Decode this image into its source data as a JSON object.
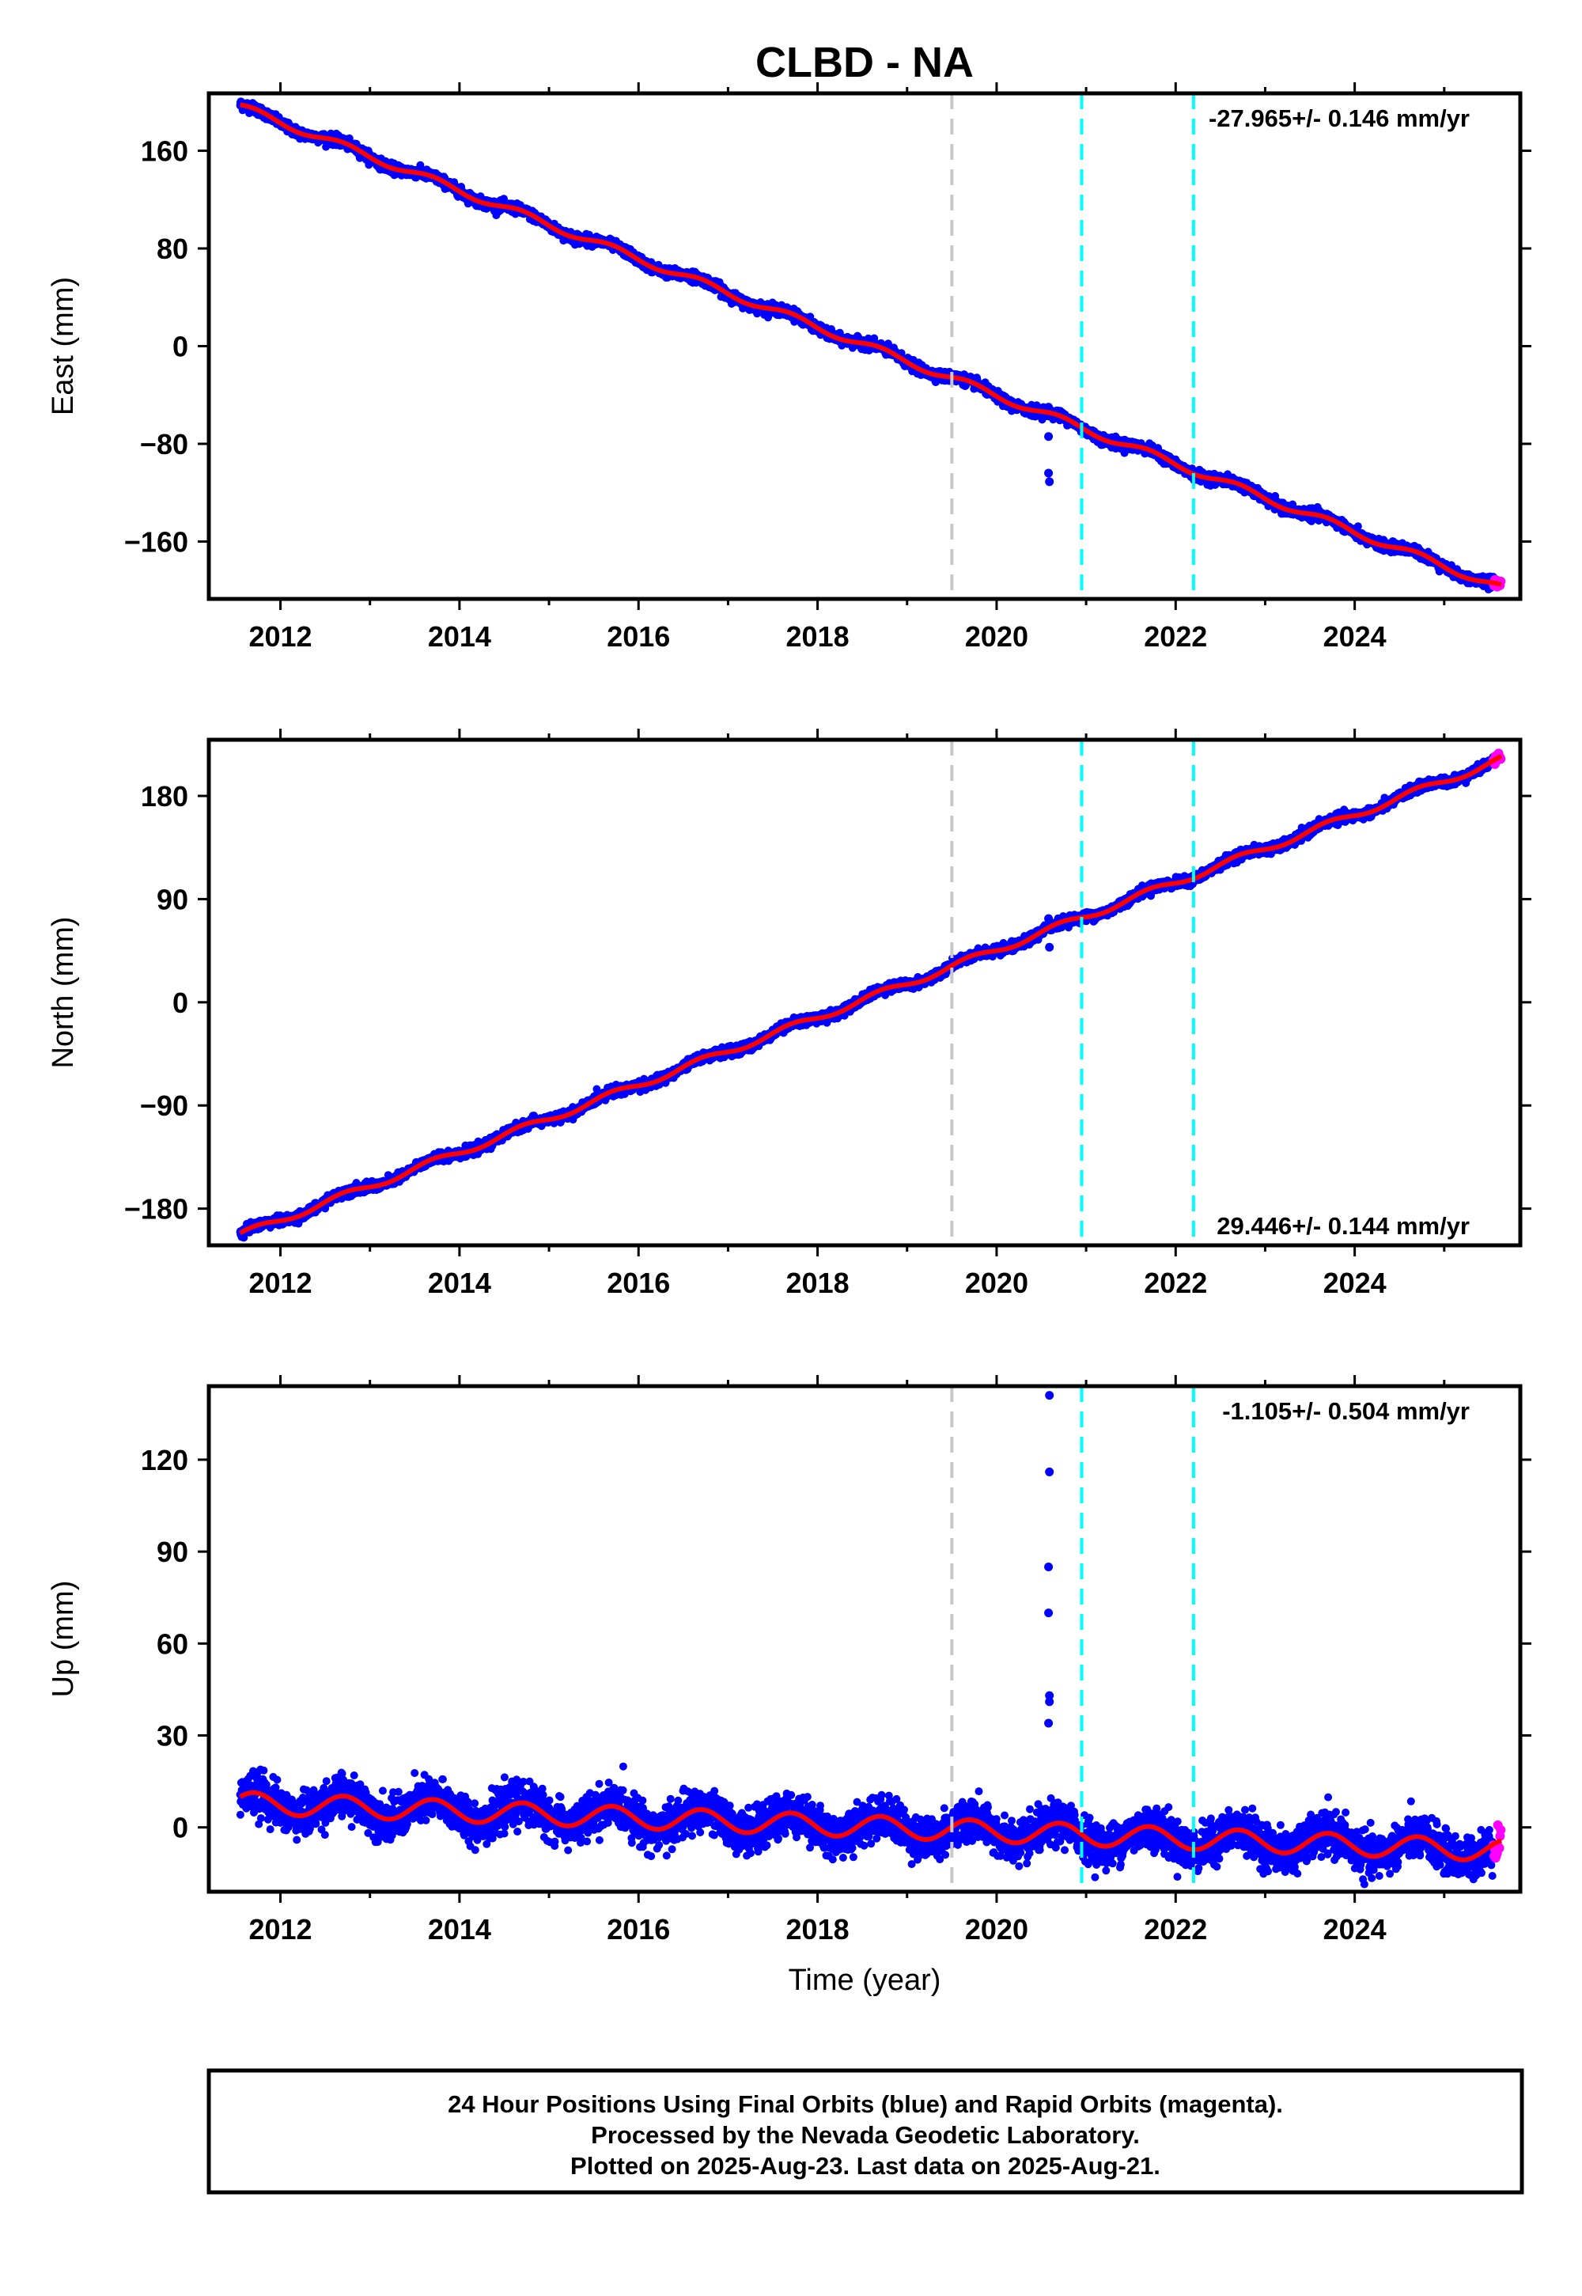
{
  "title": "CLBD - NA",
  "xlabel": "Time (year)",
  "footer": [
    "24 Hour Positions Using Final Orbits (blue) and Rapid Orbits (magenta).",
    "Processed by the Nevada Geodetic Laboratory.",
    "Plotted on 2025-Aug-23. Last data on 2025-Aug-21."
  ],
  "colors": {
    "final_orbits": "#0000ff",
    "rapid_orbits": "#ff00ff",
    "model": "#ff0000",
    "antenna_change": "#c8c8c8",
    "equipment_change": "#00ffff"
  },
  "chart_data": [
    {
      "type": "scatter",
      "name": "east",
      "ylabel": "East (mm)",
      "rate_label": "-27.965+/- 0.146 mm/yr",
      "xlim": [
        2011.2,
        2025.85
      ],
      "ylim": [
        -207,
        207
      ],
      "xticks": [
        2012,
        2014,
        2016,
        2018,
        2020,
        2022,
        2024
      ],
      "xtick_labels": [
        "2012",
        "2014",
        "2016",
        "2018",
        "2020",
        "2022",
        "2024"
      ],
      "yticks": [
        -160,
        -80,
        0,
        80,
        160
      ],
      "ytick_labels": [
        "−160",
        "−80",
        "0",
        "80",
        "160"
      ],
      "vlines": [
        {
          "x": 2019.5,
          "color": "#c8c8c8"
        },
        {
          "x": 2020.95,
          "color": "#00ffff"
        },
        {
          "x": 2022.2,
          "color": "#00ffff"
        }
      ],
      "model": {
        "t0": 2011.55,
        "y0": 196,
        "rate": -27.965,
        "annual_amp": 3,
        "noise_sd": 2.0
      },
      "final_range": [
        2011.55,
        2025.55
      ],
      "rapid_range": [
        2025.55,
        2025.64
      ],
      "outliers": [
        {
          "x": 2020.58,
          "y": -50
        },
        {
          "x": 2020.58,
          "y": -74
        },
        {
          "x": 2020.58,
          "y": -104
        },
        {
          "x": 2020.59,
          "y": -111
        }
      ]
    },
    {
      "type": "scatter",
      "name": "north",
      "ylabel": "North (mm)",
      "rate_label": "29.446+/- 0.144 mm/yr",
      "xlim": [
        2011.2,
        2025.85
      ],
      "ylim": [
        -212,
        229
      ],
      "xticks": [
        2012,
        2014,
        2016,
        2018,
        2020,
        2022,
        2024
      ],
      "xtick_labels": [
        "2012",
        "2014",
        "2016",
        "2018",
        "2020",
        "2022",
        "2024"
      ],
      "yticks": [
        -180,
        -90,
        0,
        90,
        180
      ],
      "ytick_labels": [
        "−180",
        "−90",
        "0",
        "90",
        "180"
      ],
      "vlines": [
        {
          "x": 2019.5,
          "color": "#c8c8c8"
        },
        {
          "x": 2020.95,
          "color": "#00ffff"
        },
        {
          "x": 2022.2,
          "color": "#00ffff"
        }
      ],
      "model": {
        "t0": 2011.55,
        "y0": -203,
        "rate": 29.446,
        "annual_amp": 3,
        "noise_sd": 2.0
      },
      "final_range": [
        2011.55,
        2025.55
      ],
      "rapid_range": [
        2025.55,
        2025.64
      ],
      "outliers": [
        {
          "x": 2020.58,
          "y": 73
        },
        {
          "x": 2020.58,
          "y": 65
        },
        {
          "x": 2020.59,
          "y": 48
        }
      ]
    },
    {
      "type": "scatter",
      "name": "up",
      "ylabel": "Up (mm)",
      "rate_label": "-1.105+/- 0.504 mm/yr",
      "xlim": [
        2011.2,
        2025.85
      ],
      "ylim": [
        -21,
        144
      ],
      "xticks": [
        2012,
        2014,
        2016,
        2018,
        2020,
        2022,
        2024
      ],
      "xtick_labels": [
        "2012",
        "2014",
        "2016",
        "2018",
        "2020",
        "2022",
        "2024"
      ],
      "yticks": [
        0,
        30,
        60,
        90,
        120
      ],
      "ytick_labels": [
        "0",
        "30",
        "60",
        "90",
        "120"
      ],
      "vlines": [
        {
          "x": 2019.5,
          "color": "#c8c8c8"
        },
        {
          "x": 2020.95,
          "color": "#00ffff"
        },
        {
          "x": 2022.2,
          "color": "#00ffff"
        }
      ],
      "model": {
        "t0": 2011.55,
        "y0": 8,
        "rate": -1.105,
        "annual_amp": 3.5,
        "noise_sd": 3.3
      },
      "final_range": [
        2011.55,
        2025.55
      ],
      "rapid_range": [
        2025.55,
        2025.64
      ],
      "outliers": [
        {
          "x": 2020.59,
          "y": 141
        },
        {
          "x": 2020.59,
          "y": 116
        },
        {
          "x": 2020.58,
          "y": 85
        },
        {
          "x": 2020.58,
          "y": 70
        },
        {
          "x": 2020.59,
          "y": 43
        },
        {
          "x": 2020.59,
          "y": 41
        },
        {
          "x": 2020.58,
          "y": 34
        }
      ]
    }
  ]
}
